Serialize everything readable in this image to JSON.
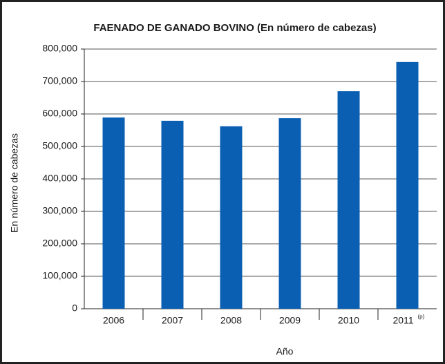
{
  "chart_data": {
    "type": "bar",
    "title": "FAENADO DE GANADO BOVINO (En número de cabezas)",
    "x_label": "Año",
    "y_label": "En número de cabezas",
    "categories": [
      "2006",
      "2007",
      "2008",
      "2009",
      "2010",
      "2011"
    ],
    "annotation": "(p)",
    "values": [
      589000,
      579000,
      562000,
      587000,
      670000,
      760000
    ],
    "color": "#0b5fb3",
    "ylim": [
      0,
      800000
    ],
    "yticks": [
      0,
      {
        "value": 100000,
        "label": "100,000"
      },
      {
        "value": 200000,
        "label": "200,000"
      },
      {
        "value": 300000,
        "label": "300,000"
      },
      {
        "value": 400000,
        "label": "400,000"
      },
      {
        "value": 500000,
        "label": "500,000"
      },
      {
        "value": 600000,
        "label": "600,000"
      },
      {
        "value": 700000,
        "label": "700,000"
      },
      {
        "value": 800000,
        "label": "800,000"
      }
    ],
    "grid": true
  }
}
